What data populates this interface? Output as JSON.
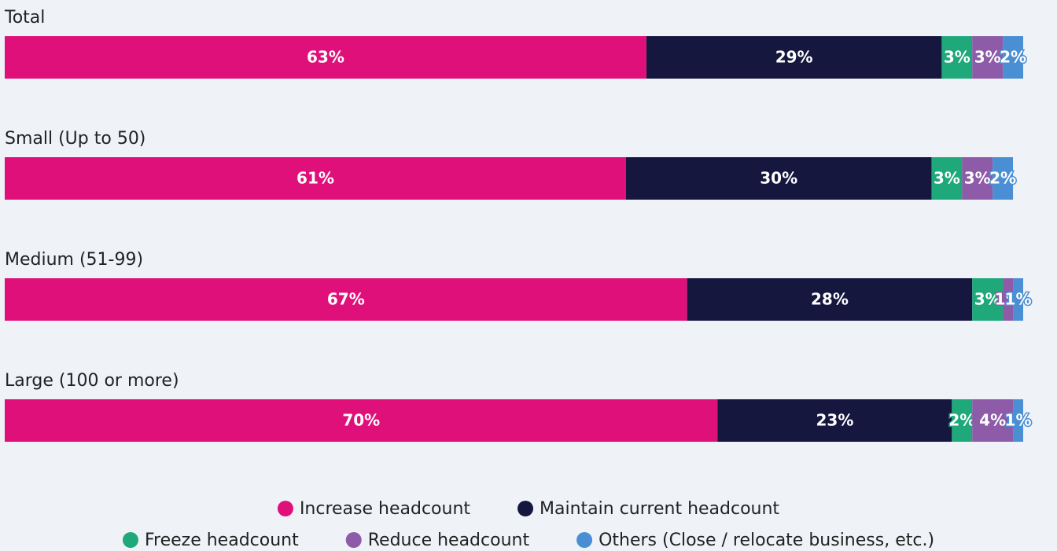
{
  "chart_data": {
    "type": "stacked-bar-horizontal",
    "categories": [
      "Total",
      "Small (Up to 50)",
      "Medium (51-99)",
      "Large (100 or more)"
    ],
    "series": [
      {
        "name": "Increase headcount",
        "color": "#e0107a",
        "values": [
          63,
          61,
          67,
          70
        ],
        "value_labels": [
          "63%",
          "61%",
          "67%",
          "70%"
        ]
      },
      {
        "name": "Maintain current headcount",
        "color": "#15173f",
        "values": [
          29,
          30,
          28,
          23
        ],
        "value_labels": [
          "29%",
          "30%",
          "28%",
          "23%"
        ]
      },
      {
        "name": "Freeze headcount",
        "color": "#1fa87a",
        "values": [
          3,
          3,
          3,
          2
        ],
        "value_labels": [
          "3%",
          "3%",
          "3%",
          "2%"
        ]
      },
      {
        "name": "Reduce headcount",
        "color": "#8d5ba8",
        "values": [
          3,
          3,
          1,
          4
        ],
        "value_labels": [
          "3%",
          "3%",
          "1%",
          "4%"
        ]
      },
      {
        "name": "Others (Close / relocate business, etc.)",
        "color": "#4a8fd4",
        "values": [
          2,
          2,
          1,
          1
        ],
        "value_labels": [
          "2%",
          "2%",
          "1%",
          "1%"
        ]
      }
    ],
    "legend": "bottom"
  }
}
